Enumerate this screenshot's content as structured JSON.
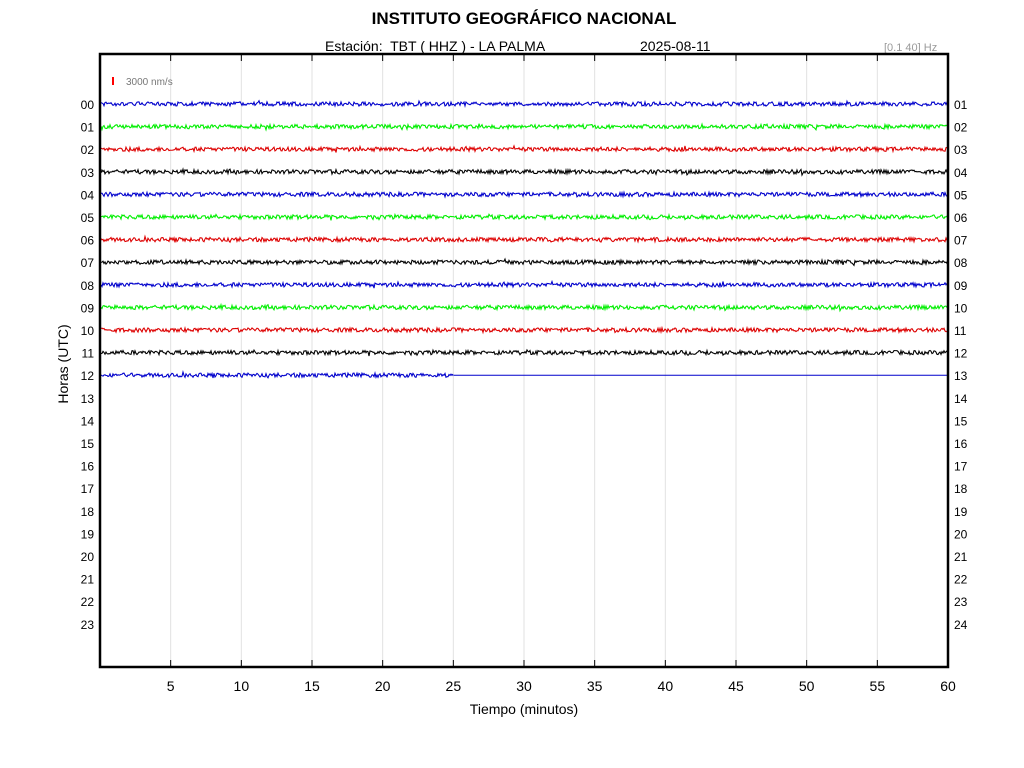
{
  "header": {
    "title": "INSTITUTO GEOGRÁFICO NACIONAL",
    "station": "Estación:  TBT ( HHZ ) - LA PALMA",
    "date": "2025-08-11",
    "band": "[0.1 40] Hz"
  },
  "chart_data": {
    "type": "line",
    "title": "INSTITUTO GEOGRÁFICO NACIONAL",
    "xlabel": "Tiempo (minutos)",
    "ylabel": "Horas (UTC)",
    "xlim": [
      0,
      60
    ],
    "x_ticks": [
      5,
      10,
      15,
      20,
      25,
      30,
      35,
      40,
      45,
      50,
      55,
      60
    ],
    "left_hour_labels": [
      "00",
      "01",
      "02",
      "03",
      "04",
      "05",
      "06",
      "07",
      "08",
      "09",
      "10",
      "11",
      "12",
      "13",
      "14",
      "15",
      "16",
      "17",
      "18",
      "19",
      "20",
      "21",
      "22",
      "23"
    ],
    "right_hour_labels": [
      "01",
      "02",
      "03",
      "04",
      "05",
      "06",
      "07",
      "08",
      "09",
      "10",
      "11",
      "12",
      "13",
      "14",
      "15",
      "16",
      "17",
      "18",
      "19",
      "20",
      "21",
      "22",
      "23",
      "24"
    ],
    "scale_label": "3000 nm/s",
    "scale_color": "#ff0000",
    "vertical_grid": true,
    "series": [
      {
        "hour": "00",
        "color": "#0000cc",
        "end_minute": 60
      },
      {
        "hour": "01",
        "color": "#00ee00",
        "end_minute": 60
      },
      {
        "hour": "02",
        "color": "#dd0000",
        "end_minute": 60
      },
      {
        "hour": "03",
        "color": "#000000",
        "end_minute": 60
      },
      {
        "hour": "04",
        "color": "#0000cc",
        "end_minute": 60
      },
      {
        "hour": "05",
        "color": "#00ee00",
        "end_minute": 60
      },
      {
        "hour": "06",
        "color": "#dd0000",
        "end_minute": 60
      },
      {
        "hour": "07",
        "color": "#000000",
        "end_minute": 60
      },
      {
        "hour": "08",
        "color": "#0000cc",
        "end_minute": 60
      },
      {
        "hour": "09",
        "color": "#00ee00",
        "end_minute": 60
      },
      {
        "hour": "10",
        "color": "#dd0000",
        "end_minute": 60
      },
      {
        "hour": "11",
        "color": "#000000",
        "end_minute": 60
      },
      {
        "hour": "12",
        "color": "#0000cc",
        "end_minute": 25
      }
    ]
  }
}
